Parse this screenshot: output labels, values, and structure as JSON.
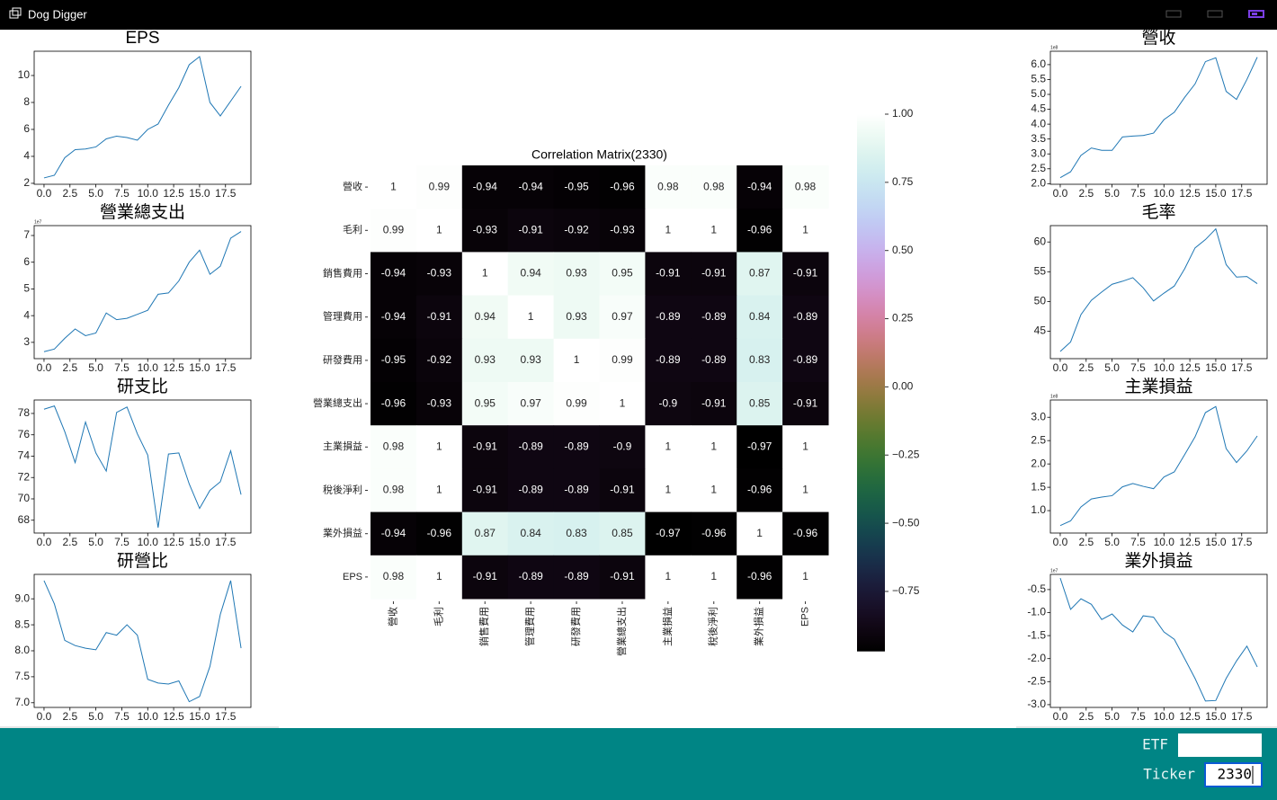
{
  "window": {
    "title": "Dog Digger"
  },
  "chart_data": [
    {
      "type": "line",
      "title": "EPS",
      "color": "#1f77b4",
      "x": [
        0,
        1,
        2,
        3,
        4,
        5,
        6,
        7,
        8,
        9,
        10,
        11,
        12,
        13,
        14,
        15,
        16,
        17,
        18,
        19
      ],
      "values": [
        2.4,
        2.6,
        3.9,
        4.5,
        4.55,
        4.7,
        5.3,
        5.5,
        5.4,
        5.2,
        6.0,
        6.4,
        7.8,
        9.1,
        10.8,
        11.4,
        8.0,
        7.0,
        8.1,
        9.2
      ],
      "xlim": [
        -0.95,
        19.95
      ],
      "ylim": [
        1.93,
        11.8
      ],
      "xticks": [
        {
          "value": 0,
          "label": "0.0"
        },
        2.5,
        {
          "value": 5,
          "label": "5.0"
        },
        7.5,
        {
          "value": 10,
          "label": "10.0"
        },
        12.5,
        {
          "value": 15,
          "label": "15.0"
        },
        17.5
      ],
      "yticks": [
        2,
        4,
        6,
        8,
        10
      ]
    },
    {
      "type": "line",
      "title": "營業總支出",
      "color": "#1f77b4",
      "offset_label": "1e7",
      "x": [
        0,
        1,
        2,
        3,
        4,
        5,
        6,
        7,
        8,
        9,
        10,
        11,
        12,
        13,
        14,
        15,
        16,
        17,
        18,
        19
      ],
      "values": [
        2.65,
        2.75,
        3.15,
        3.5,
        3.25,
        3.35,
        4.1,
        3.85,
        3.9,
        4.05,
        4.2,
        4.8,
        4.85,
        5.3,
        6.0,
        6.45,
        5.55,
        5.85,
        6.9,
        7.15
      ],
      "xlim": [
        -0.95,
        19.95
      ],
      "ylim": [
        2.39,
        7.37
      ],
      "xticks": [
        {
          "value": 0,
          "label": "0.0"
        },
        2.5,
        {
          "value": 5,
          "label": "5.0"
        },
        7.5,
        {
          "value": 10,
          "label": "10.0"
        },
        12.5,
        {
          "value": 15,
          "label": "15.0"
        },
        17.5
      ],
      "yticks": [
        3,
        4,
        5,
        6,
        7
      ]
    },
    {
      "type": "line",
      "title": "研支比",
      "color": "#1f77b4",
      "x": [
        0,
        1,
        2,
        3,
        4,
        5,
        6,
        7,
        8,
        9,
        10,
        11,
        12,
        13,
        14,
        15,
        16,
        17,
        18,
        19
      ],
      "values": [
        78.4,
        78.7,
        76.3,
        73.4,
        77.2,
        74.3,
        72.6,
        78.1,
        78.6,
        76.1,
        74.1,
        67.3,
        74.2,
        74.3,
        71.4,
        69.1,
        70.8,
        71.6,
        74.5,
        70.4
      ],
      "xlim": [
        -0.95,
        19.95
      ],
      "ylim": [
        66.8,
        79.26
      ],
      "xticks": [
        {
          "value": 0,
          "label": "0.0"
        },
        2.5,
        {
          "value": 5,
          "label": "5.0"
        },
        7.5,
        {
          "value": 10,
          "label": "10.0"
        },
        12.5,
        {
          "value": 15,
          "label": "15.0"
        },
        17.5
      ],
      "yticks": [
        68,
        70,
        72,
        74,
        76,
        78
      ]
    },
    {
      "type": "line",
      "title": "研營比",
      "color": "#1f77b4",
      "x": [
        0,
        1,
        2,
        3,
        4,
        5,
        6,
        7,
        8,
        9,
        10,
        11,
        12,
        13,
        14,
        15,
        16,
        17,
        18,
        19
      ],
      "values": [
        9.35,
        8.9,
        8.2,
        8.1,
        8.05,
        8.02,
        8.35,
        8.3,
        8.5,
        8.3,
        7.45,
        7.38,
        7.36,
        7.42,
        7.02,
        7.12,
        7.7,
        8.7,
        9.35,
        8.05
      ],
      "xlim": [
        -0.95,
        19.95
      ],
      "ylim": [
        6.91,
        9.47
      ],
      "xticks": [
        {
          "value": 0,
          "label": "0.0"
        },
        2.5,
        {
          "value": 5,
          "label": "5.0"
        },
        7.5,
        {
          "value": 10,
          "label": "10.0"
        },
        12.5,
        {
          "value": 15,
          "label": "15.0"
        },
        17.5
      ],
      "yticks": [
        {
          "value": 7,
          "label": "7.0"
        },
        7.5,
        {
          "value": 8,
          "label": "8.0"
        },
        8.5,
        {
          "value": 9,
          "label": "9.0"
        }
      ]
    },
    {
      "type": "line",
      "title": "營收",
      "color": "#1f77b4",
      "offset_label": "1e8",
      "x": [
        0,
        1,
        2,
        3,
        4,
        5,
        6,
        7,
        8,
        9,
        10,
        11,
        12,
        13,
        14,
        15,
        16,
        17,
        18,
        19
      ],
      "values": [
        2.2,
        2.4,
        2.95,
        3.2,
        3.12,
        3.12,
        3.57,
        3.6,
        3.62,
        3.7,
        4.15,
        4.4,
        4.9,
        5.35,
        6.1,
        6.23,
        5.1,
        4.83,
        5.5,
        6.25
      ],
      "xlim": [
        -0.95,
        19.95
      ],
      "ylim": [
        1.98,
        6.45
      ],
      "xticks": [
        {
          "value": 0,
          "label": "0.0"
        },
        2.5,
        {
          "value": 5,
          "label": "5.0"
        },
        7.5,
        {
          "value": 10,
          "label": "10.0"
        },
        12.5,
        {
          "value": 15,
          "label": "15.0"
        },
        17.5
      ],
      "yticks": [
        {
          "value": 2,
          "label": "2.0"
        },
        2.5,
        {
          "value": 3,
          "label": "3.0"
        },
        3.5,
        {
          "value": 4,
          "label": "4.0"
        },
        4.5,
        {
          "value": 5,
          "label": "5.0"
        },
        5.5,
        {
          "value": 6,
          "label": "6.0"
        }
      ]
    },
    {
      "type": "line",
      "title": "毛率",
      "color": "#1f77b4",
      "x": [
        0,
        1,
        2,
        3,
        4,
        5,
        6,
        7,
        8,
        9,
        10,
        11,
        12,
        13,
        14,
        15,
        16,
        17,
        18,
        19
      ],
      "values": [
        41.6,
        43.2,
        47.8,
        50.2,
        51.6,
        52.9,
        53.4,
        54.0,
        52.3,
        50.1,
        51.4,
        52.6,
        55.5,
        59.0,
        60.4,
        62.2,
        56.2,
        54.1,
        54.2,
        53.0
      ],
      "xlim": [
        -0.95,
        19.95
      ],
      "ylim": [
        40.4,
        62.75
      ],
      "xticks": [
        {
          "value": 0,
          "label": "0.0"
        },
        2.5,
        {
          "value": 5,
          "label": "5.0"
        },
        7.5,
        {
          "value": 10,
          "label": "10.0"
        },
        12.5,
        {
          "value": 15,
          "label": "15.0"
        },
        17.5
      ],
      "yticks": [
        45,
        50,
        55,
        60
      ]
    },
    {
      "type": "line",
      "title": "主業損益",
      "color": "#1f77b4",
      "offset_label": "1e8",
      "x": [
        0,
        1,
        2,
        3,
        4,
        5,
        6,
        7,
        8,
        9,
        10,
        11,
        12,
        13,
        14,
        15,
        16,
        17,
        18,
        19
      ],
      "values": [
        0.68,
        0.78,
        1.08,
        1.25,
        1.29,
        1.32,
        1.51,
        1.58,
        1.52,
        1.47,
        1.72,
        1.83,
        2.2,
        2.58,
        3.1,
        3.23,
        2.33,
        2.03,
        2.28,
        2.6
      ],
      "xlim": [
        -0.95,
        19.95
      ],
      "ylim": [
        0.52,
        3.37
      ],
      "xticks": [
        {
          "value": 0,
          "label": "0.0"
        },
        2.5,
        {
          "value": 5,
          "label": "5.0"
        },
        7.5,
        {
          "value": 10,
          "label": "10.0"
        },
        12.5,
        {
          "value": 15,
          "label": "15.0"
        },
        17.5
      ],
      "yticks": [
        {
          "value": 1,
          "label": "1.0"
        },
        1.5,
        {
          "value": 2,
          "label": "2.0"
        },
        2.5,
        {
          "value": 3,
          "label": "3.0"
        }
      ]
    },
    {
      "type": "line",
      "title": "業外損益",
      "color": "#1f77b4",
      "offset_label": "1e7",
      "x": [
        0,
        1,
        2,
        3,
        4,
        5,
        6,
        7,
        8,
        9,
        10,
        11,
        12,
        13,
        14,
        15,
        16,
        17,
        18,
        19
      ],
      "values": [
        -0.25,
        -0.93,
        -0.7,
        -0.82,
        -1.15,
        -1.03,
        -1.27,
        -1.42,
        -1.07,
        -1.1,
        -1.42,
        -1.58,
        -2.0,
        -2.43,
        -2.92,
        -2.91,
        -2.43,
        -2.05,
        -1.73,
        -2.18
      ],
      "xlim": [
        -0.95,
        19.95
      ],
      "ylim": [
        -3.06,
        -0.17
      ],
      "xticks": [
        {
          "value": 0,
          "label": "0.0"
        },
        2.5,
        {
          "value": 5,
          "label": "5.0"
        },
        7.5,
        {
          "value": 10,
          "label": "10.0"
        },
        12.5,
        {
          "value": 15,
          "label": "15.0"
        },
        17.5
      ],
      "yticks": [
        -0.5,
        {
          "value": -1,
          "label": "-1.0"
        },
        -1.5,
        {
          "value": -2,
          "label": "-2.0"
        },
        -2.5,
        {
          "value": -3,
          "label": "-3.0"
        }
      ]
    },
    {
      "type": "heatmap",
      "title": "Correlation Matrix(2330)",
      "colormap": "cubehelix",
      "categories": [
        "營收",
        "毛利",
        "銷售費用",
        "管理費用",
        "研發費用",
        "營業總支出",
        "主業損益",
        "稅後淨利",
        "業外損益",
        "EPS"
      ],
      "values": [
        [
          1,
          0.99,
          -0.94,
          -0.94,
          -0.95,
          -0.96,
          0.98,
          0.98,
          -0.94,
          0.98
        ],
        [
          0.99,
          1,
          -0.93,
          -0.91,
          -0.92,
          -0.93,
          1,
          1,
          -0.96,
          1
        ],
        [
          -0.94,
          -0.93,
          1,
          0.94,
          0.93,
          0.95,
          -0.91,
          -0.91,
          0.87,
          -0.91
        ],
        [
          -0.94,
          -0.91,
          0.94,
          1,
          0.93,
          0.97,
          -0.89,
          -0.89,
          0.84,
          -0.89
        ],
        [
          -0.95,
          -0.92,
          0.93,
          0.93,
          1,
          0.99,
          -0.89,
          -0.89,
          0.83,
          -0.89
        ],
        [
          -0.96,
          -0.93,
          0.95,
          0.97,
          0.99,
          1,
          -0.9,
          -0.91,
          0.85,
          -0.91
        ],
        [
          0.98,
          1,
          -0.91,
          -0.89,
          -0.89,
          -0.9,
          1,
          1,
          -0.97,
          1
        ],
        [
          0.98,
          1,
          -0.91,
          -0.89,
          -0.89,
          -0.91,
          1,
          1,
          -0.96,
          1
        ],
        [
          -0.94,
          -0.96,
          0.87,
          0.84,
          0.83,
          0.85,
          -0.97,
          -0.96,
          1,
          -0.96
        ],
        [
          0.98,
          1,
          -0.91,
          -0.89,
          -0.89,
          -0.91,
          1,
          1,
          -0.96,
          1
        ]
      ],
      "clim": [
        -0.97,
        1
      ],
      "colorbar_ticks": [
        {
          "value": 1,
          "label": "1.00"
        },
        0.75,
        {
          "value": 0.5,
          "label": "0.50"
        },
        0.25,
        {
          "value": 0,
          "label": "0.00"
        },
        {
          "value": -0.25,
          "label": "−0.25"
        },
        {
          "value": -0.5,
          "label": "−0.50"
        },
        {
          "value": -0.75,
          "label": "−0.75"
        }
      ]
    }
  ],
  "form": {
    "etf_label": "ETF",
    "ticker_label": "Ticker",
    "ticker_value": "2330"
  }
}
